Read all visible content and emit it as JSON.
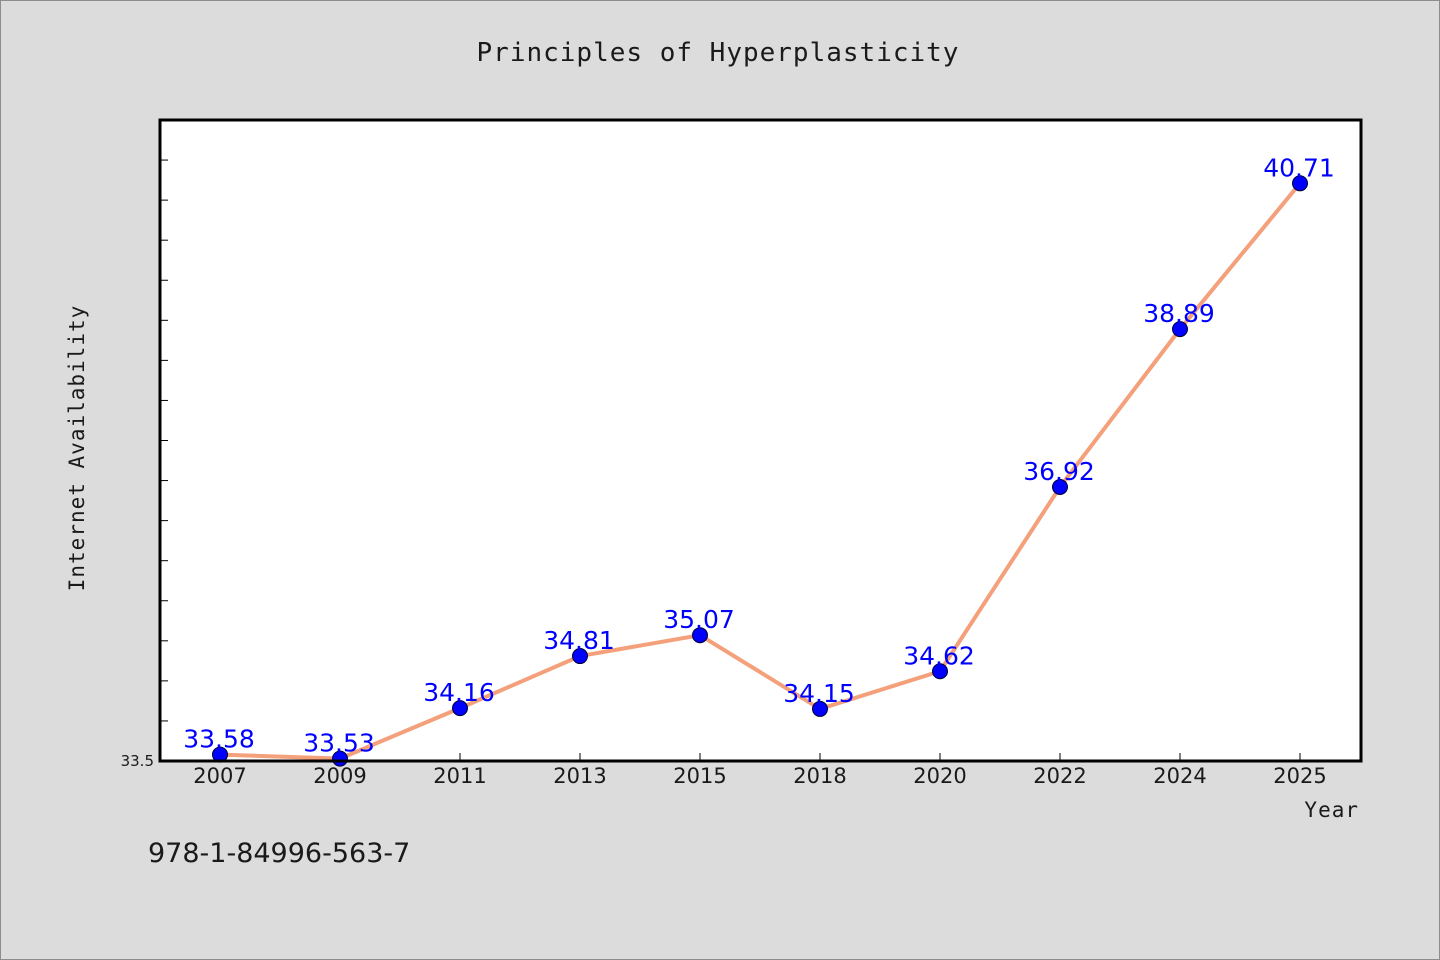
{
  "colors": {
    "background": "#dcdcdc",
    "plot_background": "#ffffff",
    "line": "#f4a07a",
    "marker": "#0000ff",
    "data_label": "#0000ff",
    "axis": "#000000"
  },
  "isbn": "978-1-84996-563-7",
  "chart_data": {
    "type": "line",
    "title": "Principles of Hyperplasticity",
    "xlabel": "Year",
    "ylabel": "Internet Availability",
    "categories": [
      "2007",
      "2009",
      "2011",
      "2013",
      "2015",
      "2018",
      "2020",
      "2022",
      "2024",
      "2025"
    ],
    "series": [
      {
        "values": [
          33.58,
          33.53,
          34.16,
          34.81,
          35.07,
          34.15,
          34.62,
          36.92,
          38.89,
          40.71
        ]
      }
    ],
    "data_labels": [
      "33.58",
      "33.53",
      "34.16",
      "34.81",
      "35.07",
      "34.15",
      "34.62",
      "36.92",
      "38.89",
      "40.71"
    ],
    "ylim": [
      33.5,
      41.5
    ],
    "y_tick_labels": [
      "33.5"
    ],
    "y_minor_tick_step": 0.5,
    "grid": false,
    "legend": "none"
  }
}
